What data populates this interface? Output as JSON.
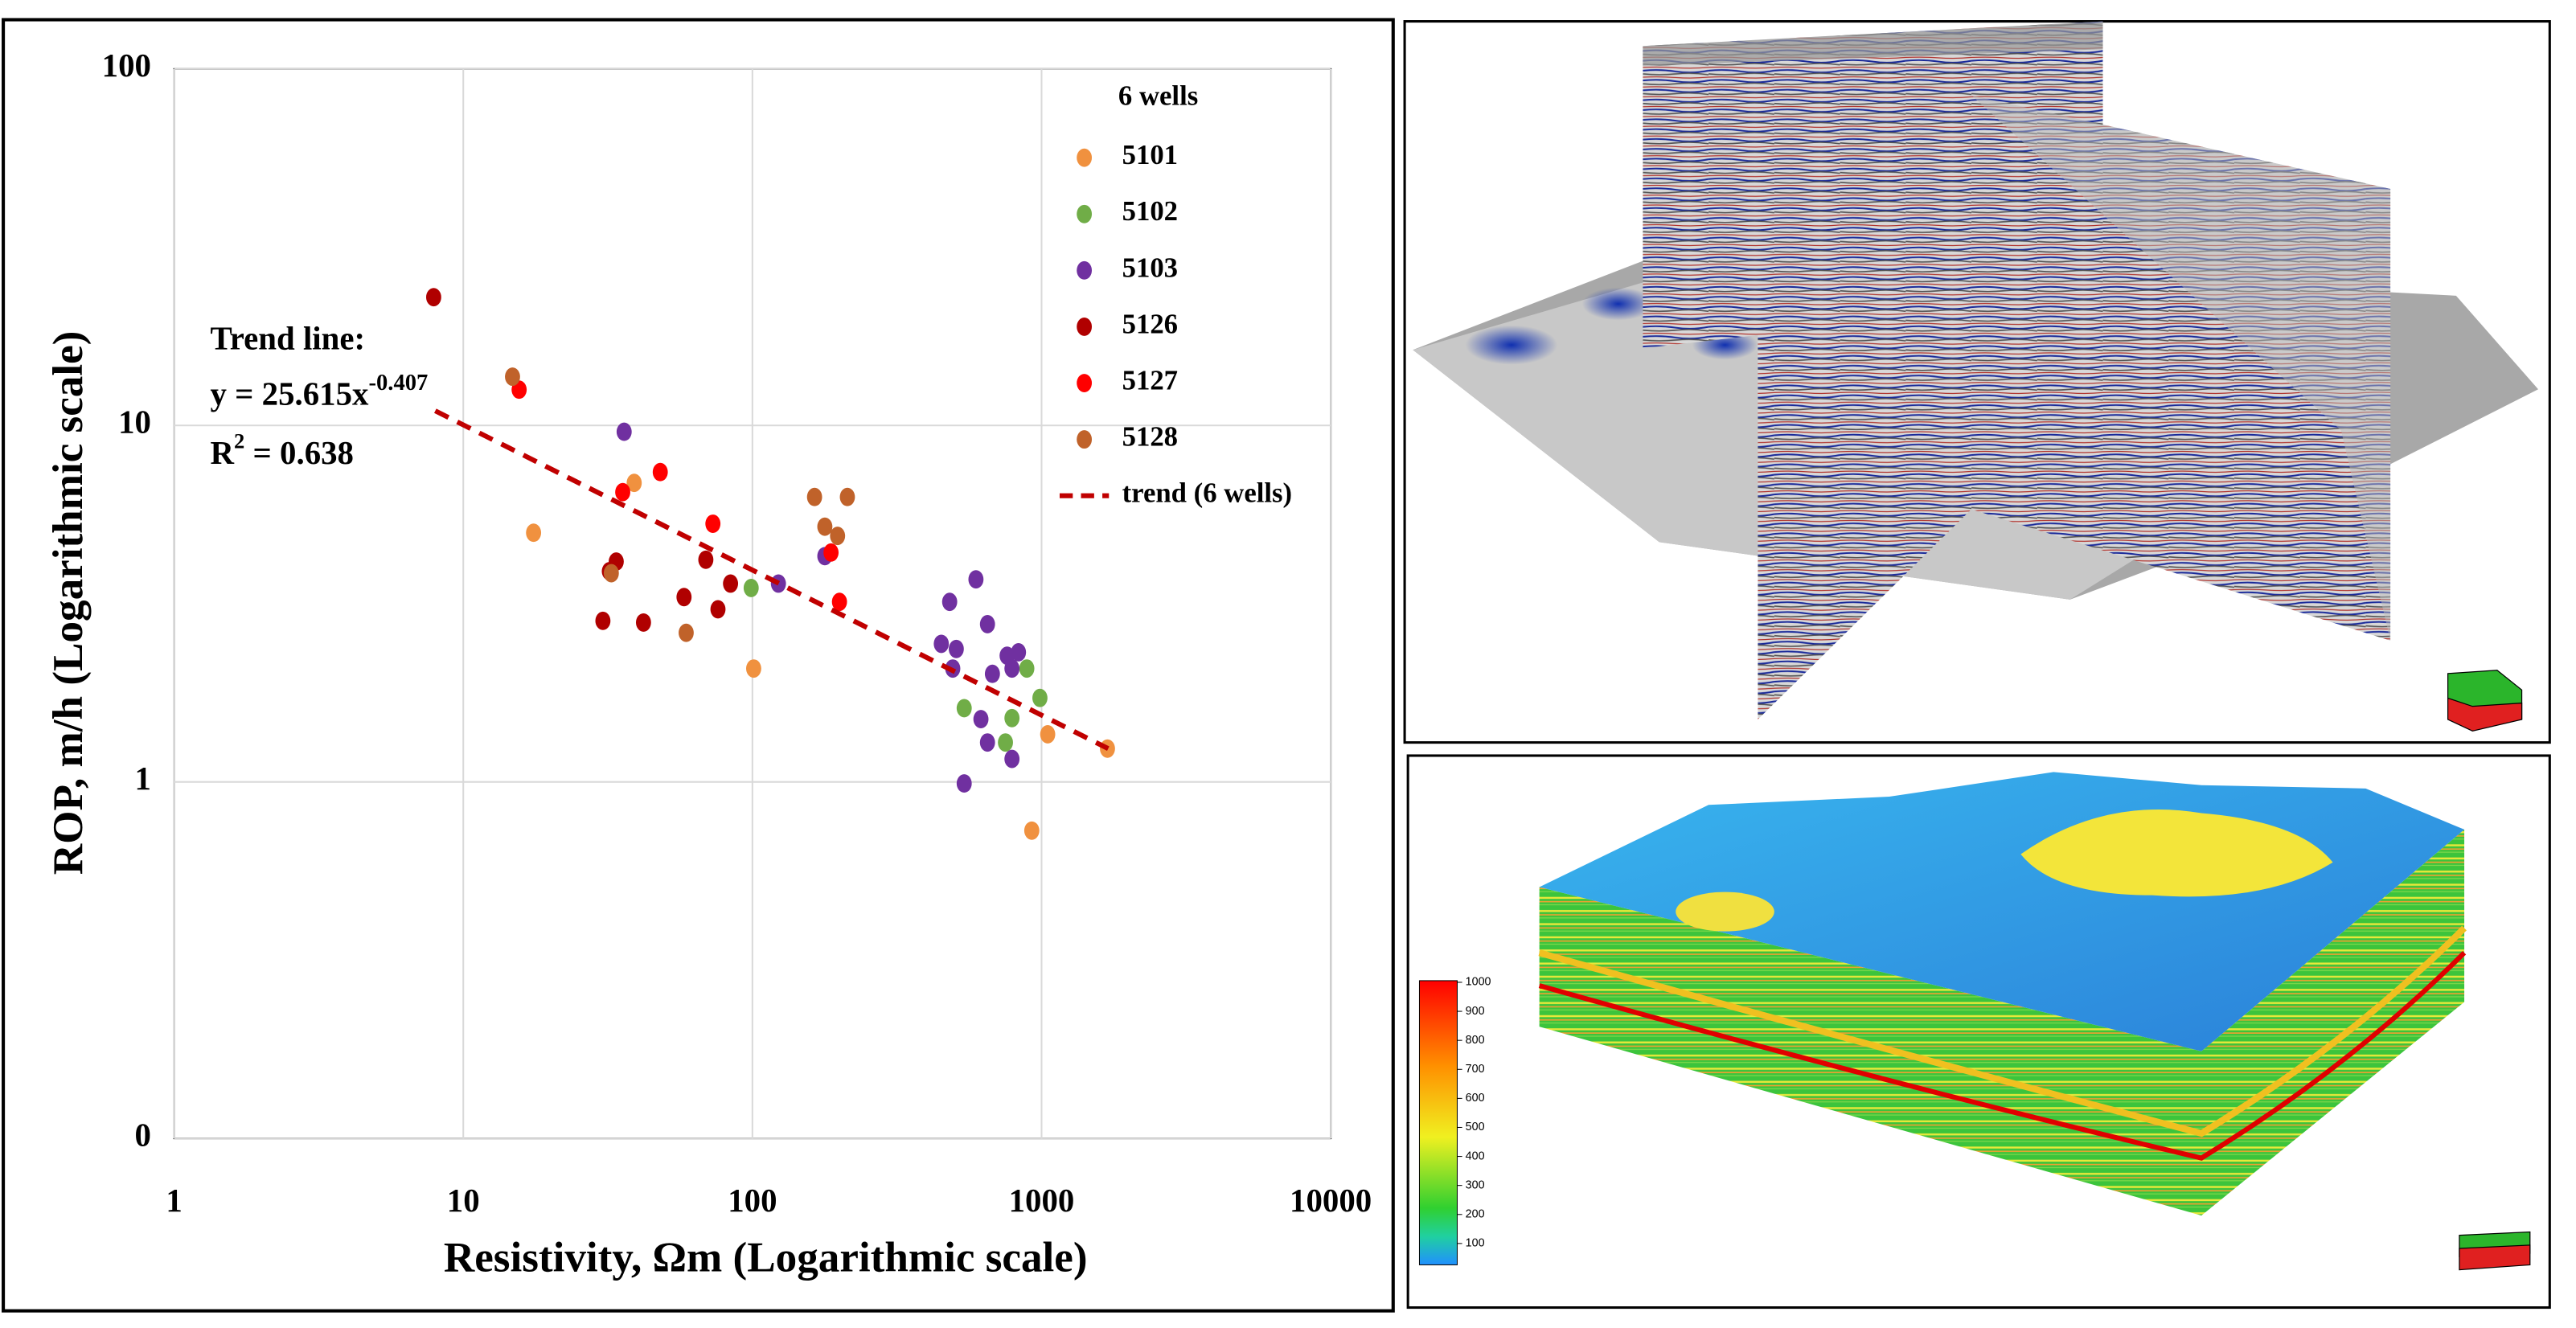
{
  "chart_data": {
    "type": "scatter",
    "x_label": "Resistivity, Ωm (Logarithmic scale)",
    "y_label": "ROP, m/h (Logarithmic scale)",
    "x_log": true,
    "y_log": true,
    "grid": true,
    "xlim": [
      1,
      10000
    ],
    "xticks": [
      1,
      10,
      100,
      1000,
      10000
    ],
    "ylim": [
      0.1,
      100
    ],
    "yticks": [
      {
        "value": 0.1,
        "label": "0"
      },
      1,
      10,
      100
    ],
    "legend_title": "6 wells",
    "legend": "upper right",
    "annotation": {
      "title": "Trend line:",
      "equation": "y = 25.615x",
      "exponent": "-0.407",
      "r2_symbol": "R",
      "r2_power": "2",
      "r2_value": " = 0.638"
    },
    "series": [
      {
        "name": "5101",
        "color": "#f0913f",
        "x": [
          17.5,
          39,
          101,
          1050,
          1690,
          925
        ],
        "values": [
          5.0,
          6.9,
          2.08,
          1.36,
          1.24,
          0.73
        ]
      },
      {
        "name": "5102",
        "color": "#70ad47",
        "x": [
          99,
          540,
          790,
          889,
          987,
          750
        ],
        "values": [
          3.5,
          1.61,
          1.51,
          2.08,
          1.72,
          1.29
        ]
      },
      {
        "name": "5103",
        "color": "#7030a0",
        "x": [
          36,
          123,
          178,
          481,
          593,
          450,
          507,
          493,
          650,
          676,
          790,
          832,
          760,
          617,
          650,
          790,
          540
        ],
        "values": [
          9.6,
          3.6,
          4.3,
          3.2,
          3.7,
          2.44,
          2.36,
          2.08,
          2.77,
          2.01,
          2.08,
          2.31,
          2.26,
          1.5,
          1.29,
          1.16,
          0.99
        ]
      },
      {
        "name": "5126",
        "color": "#b00000",
        "x": [
          7.9,
          33.8,
          32,
          30.4,
          42,
          58,
          69,
          76,
          84
        ],
        "values": [
          22.9,
          4.15,
          3.9,
          2.83,
          2.8,
          3.3,
          4.2,
          3.05,
          3.6
        ]
      },
      {
        "name": "5127",
        "color": "#ff0000",
        "x": [
          15.6,
          35.6,
          48,
          73,
          187,
          200
        ],
        "values": [
          12.6,
          6.5,
          7.4,
          5.3,
          4.4,
          3.2
        ]
      },
      {
        "name": "5128",
        "color": "#c0622a",
        "x": [
          14.8,
          32.5,
          59,
          164,
          213,
          178,
          197
        ],
        "values": [
          13.7,
          3.85,
          2.62,
          6.3,
          6.3,
          5.2,
          4.9
        ]
      },
      {
        "name": "trend  (6 wells)",
        "color": "#c00000",
        "line": "dashed",
        "x": [
          8,
          1700
        ],
        "values": [
          10.99,
          1.24
        ]
      }
    ]
  },
  "colorbar": {
    "ticks": [
      1000,
      900,
      800,
      700,
      600,
      500,
      400,
      300,
      200,
      100
    ]
  }
}
